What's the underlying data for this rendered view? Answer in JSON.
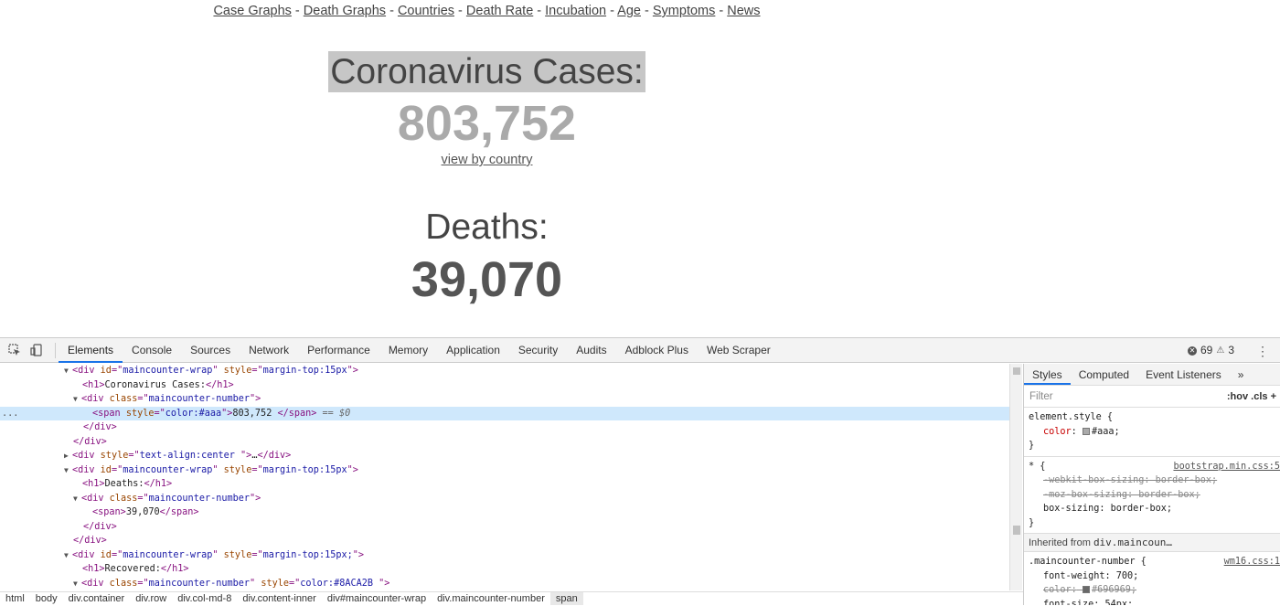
{
  "nav": {
    "links": [
      "Case Graphs",
      "Death Graphs",
      "Countries",
      "Death Rate",
      "Incubation",
      "Age",
      "Symptoms",
      "News"
    ],
    "separator": " - "
  },
  "cases": {
    "title": "Coronavirus Cases:",
    "number": "803,752",
    "link": "view by country"
  },
  "deaths": {
    "title": "Deaths:",
    "number": "39,070"
  },
  "devtools": {
    "tabs": [
      "Elements",
      "Console",
      "Sources",
      "Network",
      "Performance",
      "Memory",
      "Application",
      "Security",
      "Audits",
      "Adblock Plus",
      "Web Scraper"
    ],
    "active_tab": "Elements",
    "errors": "69",
    "warnings": "3",
    "dom_dots": "...",
    "dom": {
      "l1": {
        "tag": "div",
        "attrs": [
          [
            "id",
            "maincounter-wrap"
          ],
          [
            "style",
            "margin-top:15px"
          ]
        ]
      },
      "l2": {
        "text": "Coronavirus Cases:"
      },
      "l3": {
        "cls": "maincounter-number"
      },
      "l4": {
        "style": "color:#aaa",
        "text": "803,752 ",
        "eq": " == $0"
      },
      "l7": {
        "style": "text-align:center ",
        "ellipsis": "…"
      },
      "l8": {
        "tag": "div",
        "attrs": [
          [
            "id",
            "maincounter-wrap"
          ],
          [
            "style",
            "margin-top:15px"
          ]
        ]
      },
      "l9": {
        "text": "Deaths:"
      },
      "l10": {
        "cls": "maincounter-number"
      },
      "l11": {
        "text": "39,070"
      },
      "l14": {
        "attrs": [
          [
            "id",
            "maincounter-wrap"
          ],
          [
            "style",
            "margin-top:15px;"
          ]
        ]
      },
      "l15": {
        "text": "Recovered:"
      },
      "l16": {
        "cls": "maincounter-number",
        "style": "color:#8ACA2B "
      }
    },
    "breadcrumbs": [
      "html",
      "body",
      "div.container",
      "div.row",
      "div.col-md-8",
      "div.content-inner",
      "div#maincounter-wrap",
      "div.maincounter-number",
      "span"
    ],
    "styles_tabs": [
      "Styles",
      "Computed",
      "Event Listeners",
      "»"
    ],
    "filter_placeholder": "Filter",
    "filter_buttons": ":hov  .cls  +",
    "rules": {
      "element_style": {
        "selector": "element.style {",
        "prop": "color",
        "value": "#aaa;",
        "close": "}"
      },
      "universal": {
        "selector": "* {",
        "source": "bootstrap.min.css:5",
        "p1": "-webkit-box-sizing: border-box;",
        "p2": "-moz-box-sizing: border-box;",
        "p3": "box-sizing: border-box;",
        "close": "}"
      },
      "inherited_label": "Inherited from",
      "inherited_from": "div.maincoun…",
      "mcn": {
        "selector": ".maincounter-number {",
        "source": "wm16.css:1",
        "p1": "font-weight: 700;",
        "p2_name": "color:",
        "p2_val": "#696969;",
        "p3": "font-size: 54px;",
        "close": "}"
      }
    }
  }
}
